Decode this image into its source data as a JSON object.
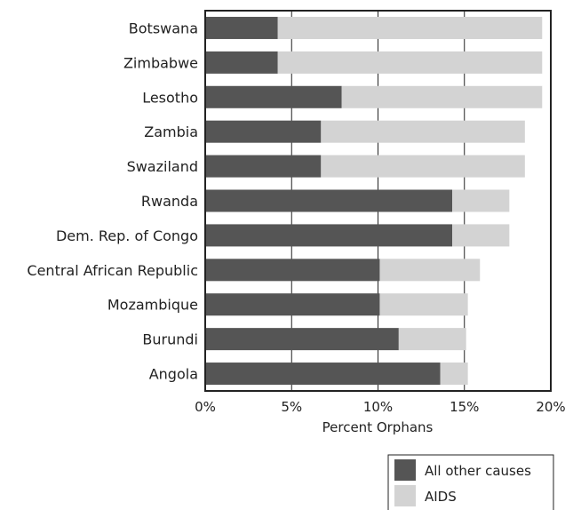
{
  "chart_data": {
    "type": "bar",
    "orientation": "horizontal",
    "stacked": true,
    "categories": [
      "Botswana",
      "Zimbabwe",
      "Lesotho",
      "Zambia",
      "Swaziland",
      "Rwanda",
      "Dem. Rep. of Congo",
      "Central African Republic",
      "Mozambique",
      "Burundi",
      "Angola"
    ],
    "series": [
      {
        "name": "All other causes",
        "color": "#555555",
        "values": [
          4.2,
          4.2,
          7.9,
          6.7,
          6.7,
          14.3,
          14.3,
          10.1,
          10.1,
          11.2,
          13.6
        ]
      },
      {
        "name": "AIDS",
        "color": "#d3d3d3",
        "values": [
          15.3,
          15.3,
          11.6,
          11.8,
          11.8,
          3.3,
          3.3,
          5.8,
          5.1,
          3.9,
          1.6
        ]
      }
    ],
    "xlabel": "Percent Orphans",
    "ylabel": "",
    "xlim": [
      0,
      20
    ],
    "x_ticks": [
      0,
      5,
      10,
      15,
      20
    ],
    "x_tick_labels": [
      "0%",
      "5%",
      "10%",
      "15%",
      "20%"
    ],
    "grid": "vertical",
    "legend": "bottom-right"
  }
}
